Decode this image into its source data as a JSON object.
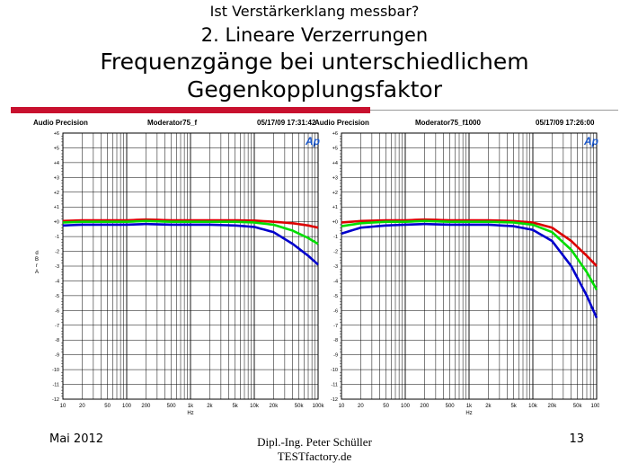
{
  "slide": {
    "subtitle_top": "Ist Verstärkerklang messbar?",
    "subtitle": "2. Lineare Verzerrungen",
    "title_line1": "Frequenzgänge bei unterschiedlichem",
    "title_line2": "Gegenkopplungsfaktor",
    "footer_left": "Mai 2012",
    "footer_center_1": "Dipl.-Ing. Peter Schüller",
    "footer_center_2": "TESTfactory.de",
    "page_number": "13",
    "accent_color": "#c8102e"
  },
  "chart_data": [
    {
      "type": "line",
      "header_left": "Audio Precision",
      "header_center": "Moderator75_f",
      "header_right": "05/17/09 17:31:42",
      "logo": "Ap",
      "xlabel": "Hz",
      "ylabel": "d B r A",
      "x_scale": "log",
      "xlim": [
        10,
        100000
      ],
      "ylim": [
        -12,
        6
      ],
      "x_tick_labels": [
        "10",
        "20",
        "50",
        "100",
        "200",
        "500",
        "1k",
        "2k",
        "5k",
        "10k",
        "20k",
        "50k",
        "100k"
      ],
      "y_tick_labels": [
        "+6",
        "+5",
        "+4",
        "+3",
        "+2",
        "+1",
        "+0",
        "-1",
        "-2",
        "-3",
        "-4",
        "-5",
        "-6",
        "-7",
        "-8",
        "-9",
        "-10",
        "-11",
        "-12"
      ],
      "series": [
        {
          "color": "#dd0000",
          "x": [
            10,
            20,
            50,
            100,
            200,
            500,
            1000,
            2000,
            5000,
            10000,
            20000,
            40000,
            70000,
            100000
          ],
          "y": [
            0.05,
            0.1,
            0.1,
            0.1,
            0.15,
            0.1,
            0.1,
            0.1,
            0.1,
            0.08,
            0.0,
            -0.1,
            -0.25,
            -0.4
          ]
        },
        {
          "color": "#00dd00",
          "x": [
            10,
            20,
            50,
            100,
            200,
            500,
            1000,
            2000,
            5000,
            10000,
            20000,
            40000,
            70000,
            100000
          ],
          "y": [
            -0.05,
            0.0,
            0.0,
            0.0,
            0.05,
            0.0,
            0.0,
            0.0,
            0.0,
            -0.05,
            -0.2,
            -0.6,
            -1.1,
            -1.5
          ]
        },
        {
          "color": "#0000cc",
          "x": [
            10,
            20,
            50,
            100,
            200,
            500,
            1000,
            2000,
            5000,
            10000,
            20000,
            40000,
            70000,
            100000
          ],
          "y": [
            -0.25,
            -0.2,
            -0.2,
            -0.2,
            -0.15,
            -0.2,
            -0.2,
            -0.2,
            -0.25,
            -0.35,
            -0.7,
            -1.5,
            -2.3,
            -2.9
          ]
        }
      ]
    },
    {
      "type": "line",
      "header_left": "Audio Precision",
      "header_center": "Moderator75_f1000",
      "header_right": "05/17/09 17:26:00",
      "logo": "Ap",
      "xlabel": "Hz",
      "ylabel": "",
      "x_scale": "log",
      "xlim": [
        10,
        100000
      ],
      "ylim": [
        -12,
        6
      ],
      "x_tick_labels": [
        "10",
        "20",
        "50",
        "100",
        "200",
        "500",
        "1k",
        "2k",
        "5k",
        "10k",
        "20k",
        "50k",
        "100k"
      ],
      "y_tick_labels": [
        "+6",
        "+5",
        "+4",
        "+3",
        "+2",
        "+1",
        "+0",
        "-1",
        "-2",
        "-3",
        "-4",
        "-5",
        "-6",
        "-7",
        "-8",
        "-9",
        "-10",
        "-11",
        "-12"
      ],
      "series": [
        {
          "color": "#dd0000",
          "x": [
            10,
            20,
            50,
            100,
            200,
            500,
            1000,
            2000,
            5000,
            10000,
            20000,
            40000,
            70000,
            100000
          ],
          "y": [
            -0.05,
            0.05,
            0.1,
            0.1,
            0.15,
            0.1,
            0.1,
            0.1,
            0.05,
            -0.05,
            -0.4,
            -1.3,
            -2.3,
            -3.0
          ]
        },
        {
          "color": "#00dd00",
          "x": [
            10,
            20,
            50,
            100,
            200,
            500,
            1000,
            2000,
            5000,
            10000,
            20000,
            40000,
            70000,
            100000
          ],
          "y": [
            -0.3,
            -0.1,
            0.0,
            0.0,
            0.05,
            0.0,
            0.0,
            0.0,
            -0.05,
            -0.2,
            -0.7,
            -1.9,
            -3.4,
            -4.6
          ]
        },
        {
          "color": "#0000cc",
          "x": [
            10,
            20,
            50,
            100,
            200,
            500,
            1000,
            2000,
            5000,
            10000,
            20000,
            40000,
            70000,
            100000
          ],
          "y": [
            -0.8,
            -0.4,
            -0.25,
            -0.2,
            -0.15,
            -0.2,
            -0.2,
            -0.2,
            -0.3,
            -0.55,
            -1.3,
            -3.0,
            -5.0,
            -6.5
          ]
        }
      ]
    }
  ]
}
